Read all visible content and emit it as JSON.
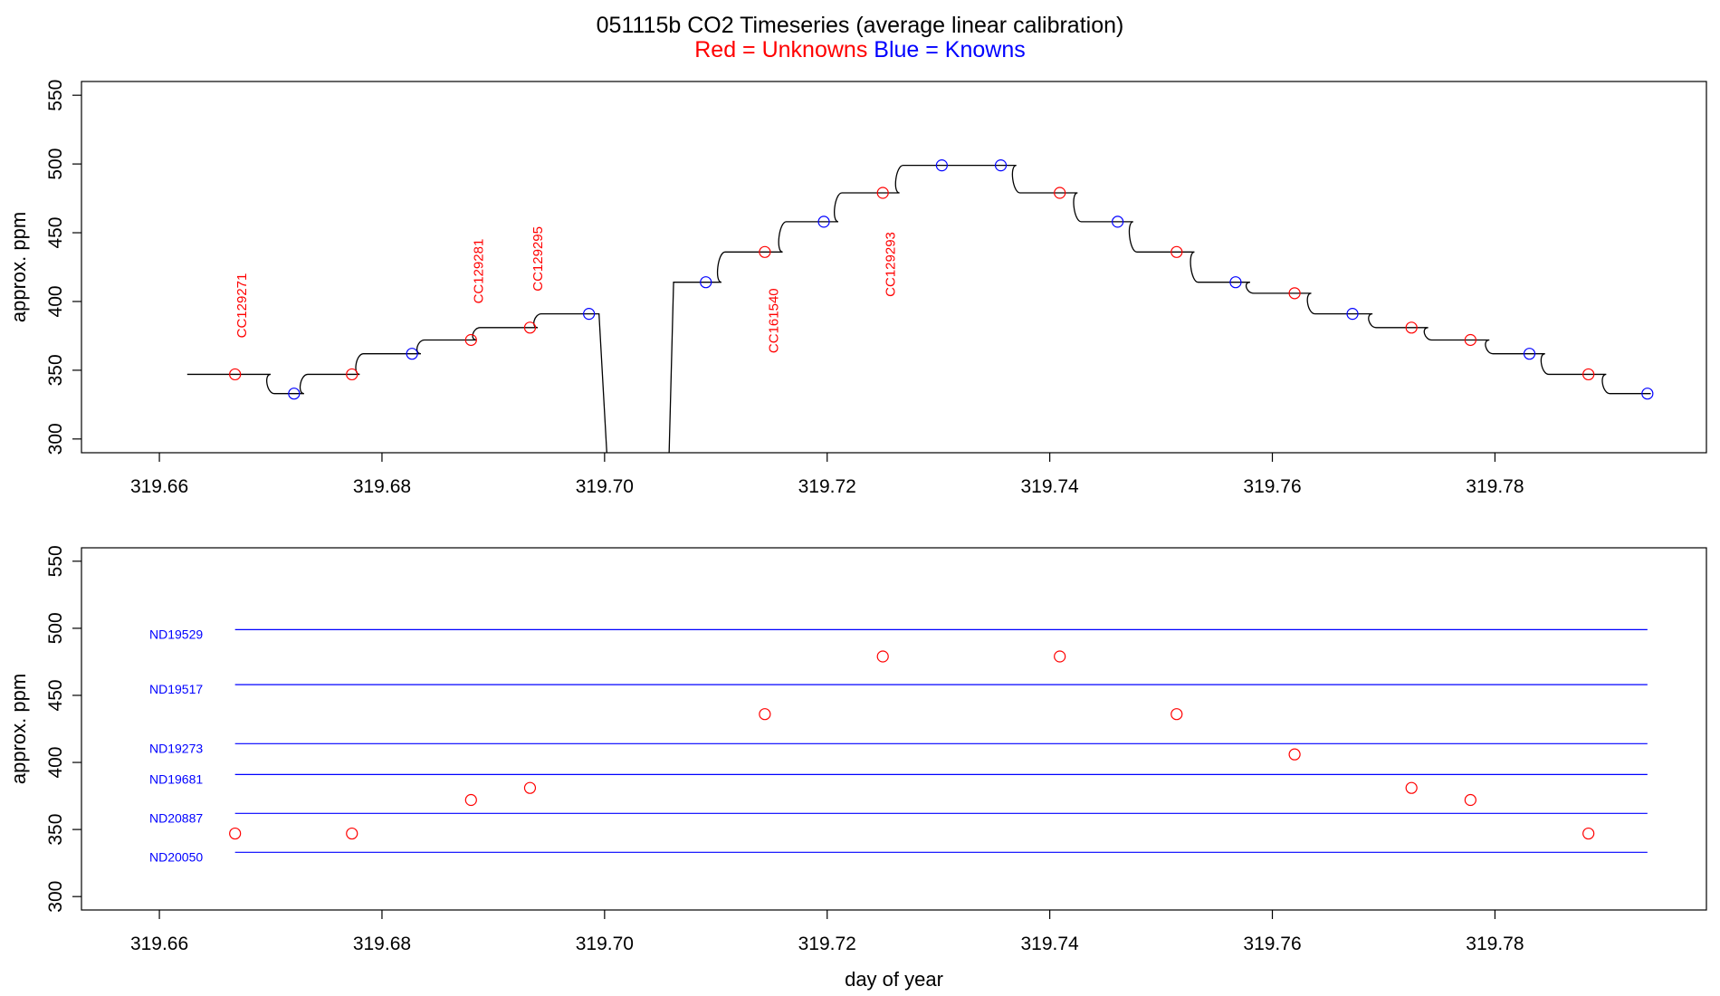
{
  "title": "051115b   CO2 Timeseries (average linear calibration)",
  "subtitle": {
    "unknowns_text": "Red = Unknowns",
    "knowns_text": "Blue = Knowns",
    "unknowns_color": "#ff0000",
    "knowns_color": "#0000ff"
  },
  "chart_data": [
    {
      "type": "line",
      "panel": "top",
      "xlabel": "",
      "ylabel": "approx. ppm",
      "xlim": [
        319.653,
        319.799
      ],
      "ylim": [
        290,
        560
      ],
      "x_ticks": [
        319.66,
        319.68,
        319.7,
        319.72,
        319.74,
        319.76,
        319.78
      ],
      "x_tick_labels": [
        "319.66",
        "319.68",
        "319.70",
        "319.72",
        "319.74",
        "319.76",
        "319.78"
      ],
      "y_ticks": [
        300,
        350,
        400,
        450,
        500,
        550
      ],
      "y_tick_labels": [
        "300",
        "350",
        "400",
        "450",
        "500",
        "550"
      ],
      "grid": false,
      "series": [
        {
          "color": "#000000",
          "style": "step-line",
          "segments": [
            {
              "x_start": 319.6625,
              "x_end": 319.67,
              "level": 347
            },
            {
              "x_start": 319.67,
              "x_end": 319.673,
              "level": 333
            },
            {
              "x_start": 319.673,
              "x_end": 319.678,
              "level": 347
            },
            {
              "x_start": 319.678,
              "x_end": 319.6835,
              "level": 362
            },
            {
              "x_start": 319.6835,
              "x_end": 319.6885,
              "level": 372
            },
            {
              "x_start": 319.6885,
              "x_end": 319.694,
              "level": 381
            },
            {
              "x_start": 319.694,
              "x_end": 319.6995,
              "level": 391
            }
          ],
          "drop": {
            "x_start": 319.6995,
            "x_end": 319.7002,
            "to": 290
          },
          "rise": {
            "x_start": 319.7058,
            "x_end": 319.7062,
            "from": 290,
            "to": 414
          },
          "segments_after": [
            {
              "x_start": 319.7062,
              "x_end": 319.7105,
              "level": 414
            },
            {
              "x_start": 319.7105,
              "x_end": 319.716,
              "level": 436
            },
            {
              "x_start": 319.716,
              "x_end": 319.721,
              "level": 458
            },
            {
              "x_start": 319.721,
              "x_end": 319.7265,
              "level": 479
            },
            {
              "x_start": 319.7265,
              "x_end": 319.737,
              "level": 499
            },
            {
              "x_start": 319.737,
              "x_end": 319.7425,
              "level": 479
            },
            {
              "x_start": 319.7425,
              "x_end": 319.7475,
              "level": 458
            },
            {
              "x_start": 319.7475,
              "x_end": 319.753,
              "level": 436
            },
            {
              "x_start": 319.753,
              "x_end": 319.758,
              "level": 414
            },
            {
              "x_start": 319.758,
              "x_end": 319.7635,
              "level": 406
            },
            {
              "x_start": 319.7635,
              "x_end": 319.769,
              "level": 391
            },
            {
              "x_start": 319.769,
              "x_end": 319.774,
              "level": 381
            },
            {
              "x_start": 319.774,
              "x_end": 319.7795,
              "level": 372
            },
            {
              "x_start": 319.7795,
              "x_end": 319.7845,
              "level": 362
            },
            {
              "x_start": 319.7845,
              "x_end": 319.79,
              "level": 347
            },
            {
              "x_start": 319.79,
              "x_end": 319.794,
              "level": 333
            }
          ]
        },
        {
          "name": "Unknowns",
          "color": "#ff0000",
          "marker": "circle",
          "points": [
            [
              319.6668,
              347
            ],
            [
              319.6773,
              347
            ],
            [
              319.688,
              372
            ],
            [
              319.6933,
              381
            ],
            [
              319.7144,
              436
            ],
            [
              319.725,
              479
            ],
            [
              319.7409,
              479
            ],
            [
              319.7514,
              436
            ],
            [
              319.762,
              406
            ],
            [
              319.7725,
              381
            ],
            [
              319.7778,
              372
            ],
            [
              319.7884,
              347
            ]
          ]
        },
        {
          "name": "Knowns",
          "color": "#0000ff",
          "marker": "circle",
          "points": [
            [
              319.6721,
              333
            ],
            [
              319.6827,
              362
            ],
            [
              319.6986,
              391
            ],
            [
              319.7091,
              414
            ],
            [
              319.7197,
              458
            ],
            [
              319.7303,
              499
            ],
            [
              319.7356,
              499
            ],
            [
              319.7461,
              458
            ],
            [
              319.7567,
              414
            ],
            [
              319.7672,
              391
            ],
            [
              319.7831,
              362
            ],
            [
              319.7937,
              333
            ]
          ]
        }
      ],
      "annotations": [
        {
          "text": "CC129271",
          "x": 319.6673,
          "y": 397,
          "color": "#ff0000",
          "rotation": -90
        },
        {
          "text": "CC129281",
          "x": 319.6886,
          "y": 422,
          "color": "#ff0000",
          "rotation": -90
        },
        {
          "text": "CC129295",
          "x": 319.6939,
          "y": 431,
          "color": "#ff0000",
          "rotation": -90
        },
        {
          "text": "CC161540",
          "x": 319.7151,
          "y": 386,
          "color": "#ff0000",
          "rotation": -90
        },
        {
          "text": "CC129293",
          "x": 319.7256,
          "y": 427,
          "color": "#ff0000",
          "rotation": -90
        }
      ]
    },
    {
      "type": "scatter",
      "panel": "bottom",
      "xlabel": "day of year",
      "ylabel": "approx. ppm",
      "xlim": [
        319.653,
        319.799
      ],
      "ylim": [
        290,
        560
      ],
      "x_ticks": [
        319.66,
        319.68,
        319.7,
        319.72,
        319.74,
        319.76,
        319.78
      ],
      "x_tick_labels": [
        "319.66",
        "319.68",
        "319.70",
        "319.72",
        "319.74",
        "319.76",
        "319.78"
      ],
      "y_ticks": [
        300,
        350,
        400,
        450,
        500,
        550
      ],
      "y_tick_labels": [
        "300",
        "350",
        "400",
        "450",
        "500",
        "550"
      ],
      "grid": false,
      "reference_lines": [
        {
          "label": "ND19529",
          "value": 499,
          "color": "#0000ff"
        },
        {
          "label": "ND19517",
          "value": 458,
          "color": "#0000ff"
        },
        {
          "label": "ND19273",
          "value": 414,
          "color": "#0000ff"
        },
        {
          "label": "ND19681",
          "value": 391,
          "color": "#0000ff"
        },
        {
          "label": "ND20887",
          "value": 362,
          "color": "#0000ff"
        },
        {
          "label": "ND20050",
          "value": 333,
          "color": "#0000ff"
        }
      ],
      "reference_x_range": [
        319.6668,
        319.7937
      ],
      "series": [
        {
          "name": "Unknowns",
          "color": "#ff0000",
          "marker": "circle",
          "points": [
            [
              319.6668,
              347
            ],
            [
              319.6773,
              347
            ],
            [
              319.688,
              372
            ],
            [
              319.6933,
              381
            ],
            [
              319.7144,
              436
            ],
            [
              319.725,
              479
            ],
            [
              319.7409,
              479
            ],
            [
              319.7514,
              436
            ],
            [
              319.762,
              406
            ],
            [
              319.7725,
              381
            ],
            [
              319.7778,
              372
            ],
            [
              319.7884,
              347
            ]
          ]
        }
      ]
    }
  ]
}
